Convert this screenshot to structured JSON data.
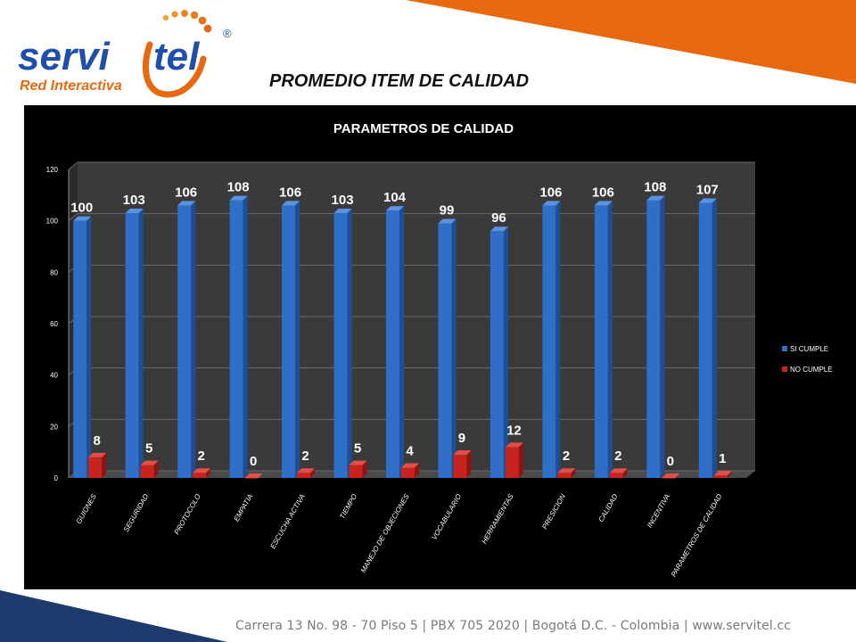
{
  "brand": {
    "name_part1": "servi",
    "name_part2": "tel",
    "tagline": "Red Interactiva",
    "registered_mark": "®"
  },
  "page_title": "PROMEDIO ITEM DE CALIDAD",
  "footer": "Carrera 13 No. 98 - 70 Piso 5 | PBX 705 2020 | Bogotá D.C. - Colombia | www.servitel.cc",
  "colors": {
    "accent_orange": "#e8680f",
    "navy": "#1f3b6e",
    "series_si": "#2f6fc8",
    "series_no": "#c8231f"
  },
  "chart_data": {
    "type": "bar",
    "title": "PARAMETROS DE CALIDAD",
    "categories": [
      "GUIONES",
      "SEGURIDAD",
      "PROTOCOLO",
      "EMPATIA",
      "ESCUCHA ACTIVA",
      "TIEMPO",
      "MANEJO DE OBJECIONES",
      "VOCABULARIO",
      "HERRAMIENTAS",
      "PRESICION",
      "CALIDAD",
      "INCENTIVA",
      "PARAMETROS DE CALIDAD"
    ],
    "series": [
      {
        "name": "SI CUMPLE",
        "color": "#2f6fc8",
        "values": [
          100,
          103,
          106,
          108,
          106,
          103,
          104,
          99,
          96,
          106,
          106,
          108,
          107
        ]
      },
      {
        "name": "NO CUMPLE",
        "color": "#c8231f",
        "values": [
          8,
          5,
          2,
          0,
          2,
          5,
          4,
          9,
          12,
          2,
          2,
          0,
          1
        ]
      }
    ],
    "ylim": [
      0,
      120
    ],
    "yticks": [
      0,
      20,
      40,
      60,
      80,
      100,
      120
    ],
    "grid": true,
    "legend_position": "right",
    "data_labels": true,
    "xlabel": "",
    "ylabel": ""
  }
}
